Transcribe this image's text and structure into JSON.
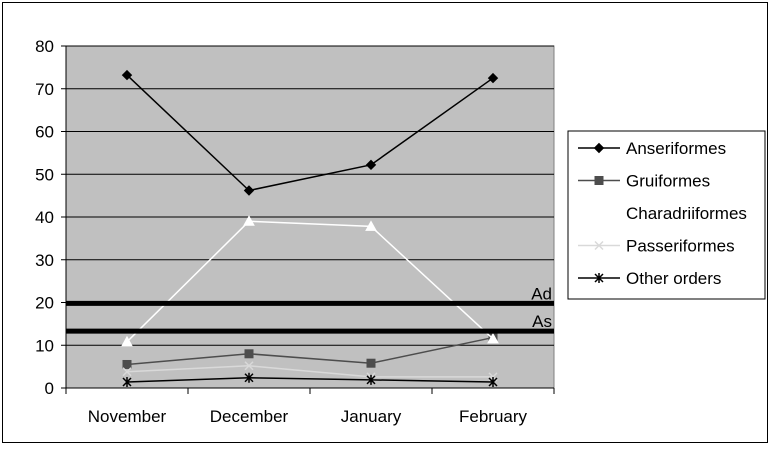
{
  "chart_data": {
    "type": "line",
    "categories": [
      "November",
      "December",
      "January",
      "February"
    ],
    "ylim": [
      0,
      80
    ],
    "yticks": [
      0,
      10,
      20,
      30,
      40,
      50,
      60,
      70,
      80
    ],
    "grid": "horizontal",
    "plot_background": "#c0c0c0",
    "legend_position": "right",
    "series": [
      {
        "name": "Anseriformes",
        "values": [
          73.2,
          46.2,
          52.2,
          72.5
        ],
        "color": "#000000",
        "marker": "diamond"
      },
      {
        "name": "Gruiformes",
        "values": [
          5.5,
          8.0,
          5.8,
          11.8
        ],
        "color": "#4d4d4d",
        "marker": "square"
      },
      {
        "name": "Charadriiformes",
        "values": [
          10.8,
          39.0,
          37.8,
          11.5
        ],
        "color": "#ffffff",
        "marker": "triangle"
      },
      {
        "name": "Passeriformes",
        "values": [
          3.8,
          5.2,
          2.6,
          2.6
        ],
        "color": "#d9d9d9",
        "marker": "x"
      },
      {
        "name": "Other orders",
        "values": [
          1.4,
          2.4,
          1.9,
          1.4
        ],
        "color": "#000000",
        "marker": "star"
      }
    ],
    "reference_lines": [
      {
        "label": "Ad",
        "value": 19.8,
        "color": "#000000"
      },
      {
        "label": "As",
        "value": 13.3,
        "color": "#000000"
      }
    ]
  }
}
